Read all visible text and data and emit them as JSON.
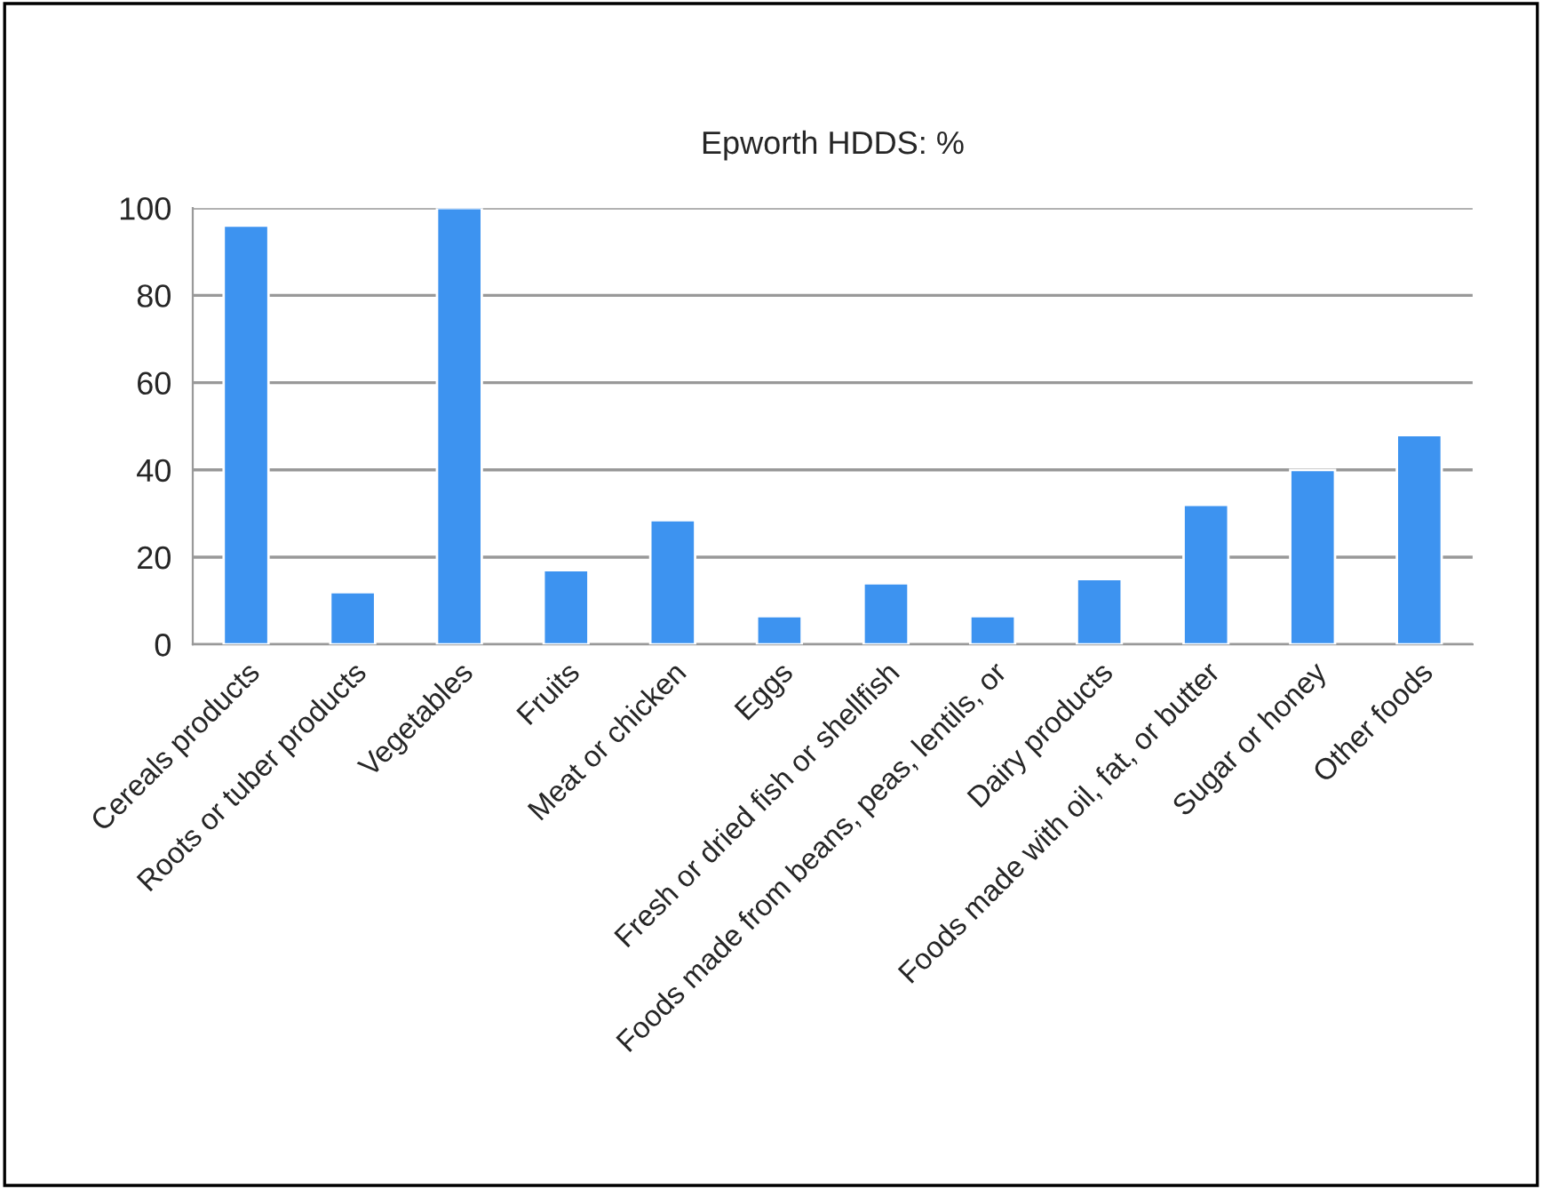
{
  "chart_data": {
    "type": "bar",
    "title": "Epworth HDDS: %",
    "categories": [
      "Cereals products",
      "Roots or tuber products",
      "Vegetables",
      "Fruits",
      "Meat or chicken",
      "Eggs",
      "Fresh or dried fish or shellfish",
      "Foods made from beans, peas, lentils, or",
      "Dairy products",
      "Foods made with oil, fat, or butter",
      "Sugar or honey",
      "Other foods"
    ],
    "values": [
      96,
      12,
      100,
      17,
      28.5,
      6.5,
      14,
      6.5,
      15,
      32,
      40,
      48
    ],
    "color": "#3d93f0",
    "ylim": [
      0,
      100
    ],
    "yticks": [
      0,
      20,
      40,
      60,
      80,
      100
    ],
    "grid": "y",
    "legend": false
  }
}
